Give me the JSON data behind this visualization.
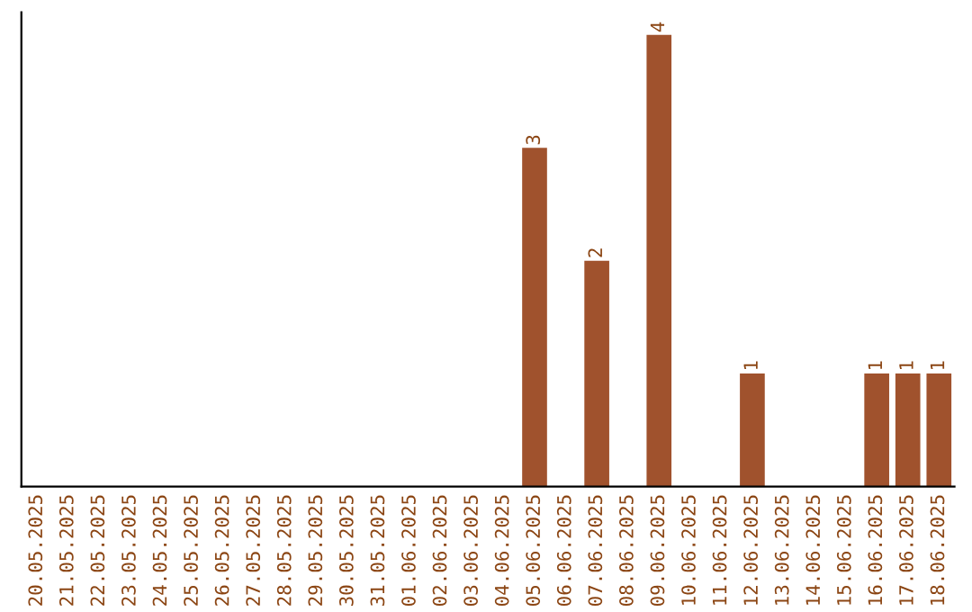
{
  "chart_data": {
    "type": "bar",
    "categories": [
      "20.05.2025",
      "21.05.2025",
      "22.05.2025",
      "23.05.2025",
      "24.05.2025",
      "25.05.2025",
      "26.05.2025",
      "27.05.2025",
      "28.05.2025",
      "29.05.2025",
      "30.05.2025",
      "31.05.2025",
      "01.06.2025",
      "02.06.2025",
      "03.06.2025",
      "04.06.2025",
      "05.06.2025",
      "06.06.2025",
      "07.06.2025",
      "08.06.2025",
      "09.06.2025",
      "10.06.2025",
      "11.06.2025",
      "12.06.2025",
      "13.06.2025",
      "14.06.2025",
      "15.06.2025",
      "16.06.2025",
      "17.06.2025",
      "18.06.2025"
    ],
    "values": [
      null,
      null,
      null,
      null,
      null,
      null,
      null,
      null,
      null,
      null,
      null,
      null,
      null,
      null,
      null,
      null,
      3,
      null,
      2,
      null,
      4,
      null,
      null,
      1,
      null,
      null,
      null,
      1,
      1,
      1
    ],
    "data_labels": true,
    "color": "#a0522d",
    "tick_labels": "x"
  }
}
